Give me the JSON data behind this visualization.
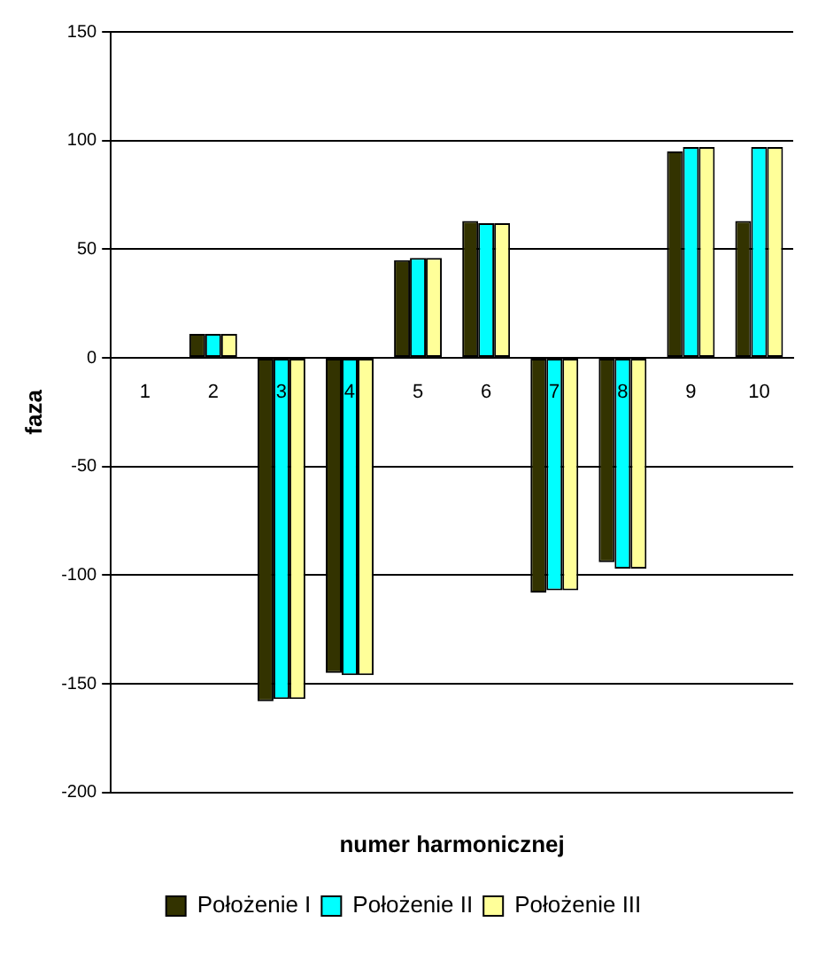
{
  "chart_data": {
    "type": "bar",
    "xlabel": "numer harmonicznej",
    "ylabel": "faza",
    "categories": [
      "1",
      "2",
      "3",
      "4",
      "5",
      "6",
      "7",
      "8",
      "9",
      "10"
    ],
    "series": [
      {
        "name": "Położenie I",
        "color": "#333300",
        "values": [
          0,
          11,
          -158,
          -145,
          45,
          63,
          -108,
          -94,
          95,
          63
        ]
      },
      {
        "name": "Położenie II",
        "color": "#00ffff",
        "values": [
          0,
          11,
          -157,
          -146,
          46,
          62,
          -107,
          -97,
          97,
          97
        ]
      },
      {
        "name": "Położenie III",
        "color": "#ffff99",
        "values": [
          0,
          11,
          -157,
          -146,
          46,
          62,
          -107,
          -97,
          97,
          97
        ]
      }
    ],
    "ylim": [
      -200,
      150
    ],
    "yticks": [
      -200,
      -150,
      -100,
      -50,
      0,
      50,
      100,
      150
    ],
    "grid": "y",
    "legend": "bottom"
  }
}
